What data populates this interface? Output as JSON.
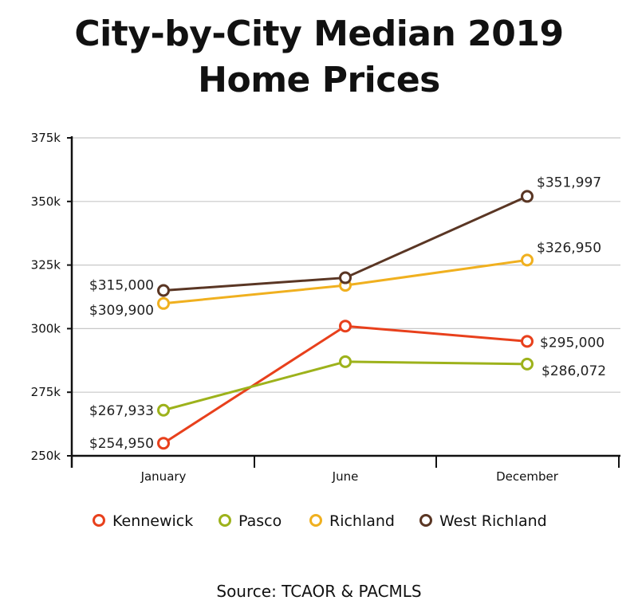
{
  "chart_data": {
    "type": "line",
    "title_lines": [
      "City-by-City Median 2019",
      "Home Prices"
    ],
    "categories": [
      "January",
      "June",
      "December"
    ],
    "y_ticks": [
      "250k",
      "275k",
      "300k",
      "325k",
      "350k",
      "375k"
    ],
    "ylim": [
      250000,
      375000
    ],
    "grid": true,
    "legend_position": "bottom",
    "series": [
      {
        "name": "Kennewick",
        "color": "#e8401c",
        "values": [
          254950,
          301000,
          295000
        ],
        "labels": [
          "$254,950",
          "",
          "$295,000"
        ]
      },
      {
        "name": "Pasco",
        "color": "#9db21b",
        "values": [
          267933,
          287000,
          286072
        ],
        "labels": [
          "$267,933",
          "",
          "$286,072"
        ]
      },
      {
        "name": "Richland",
        "color": "#f0b01f",
        "values": [
          309900,
          317000,
          326950
        ],
        "labels": [
          "$309,900",
          "",
          "$326,950"
        ]
      },
      {
        "name": "West Richland",
        "color": "#5a3624",
        "values": [
          315000,
          320000,
          351997
        ],
        "labels": [
          "$315,000",
          "",
          "$351,997"
        ]
      }
    ],
    "source": "Source: TCAOR & PACMLS"
  }
}
